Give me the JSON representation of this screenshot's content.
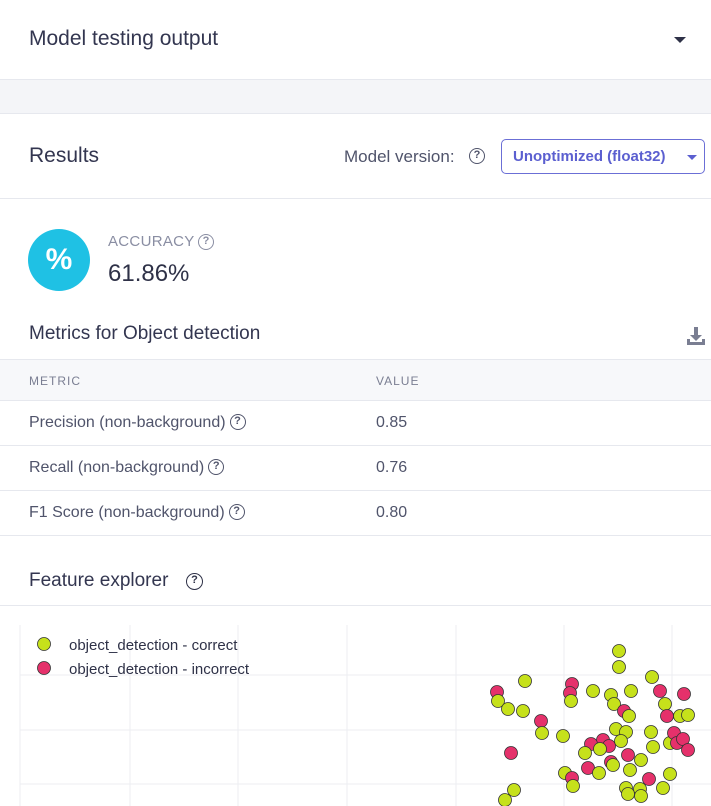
{
  "panel_top": {
    "title": "Model testing output"
  },
  "results": {
    "title": "Results",
    "model_version_label": "Model version:",
    "model_version_value": "Unoptimized (float32)"
  },
  "accuracy": {
    "icon": "percent-icon",
    "icon_glyph": "%",
    "label": "ACCURACY",
    "value": "61.86%"
  },
  "metrics": {
    "title": "Metrics for Object detection",
    "headers": [
      "METRIC",
      "VALUE"
    ],
    "rows": [
      {
        "name": "Precision (non-background)",
        "value": "0.85"
      },
      {
        "name": "Recall (non-background)",
        "value": "0.76"
      },
      {
        "name": "F1 Score (non-background)",
        "value": "0.80"
      }
    ]
  },
  "feature_explorer": {
    "title": "Feature explorer",
    "legend": [
      {
        "label": "object_detection - correct",
        "color": "#c6e11b"
      },
      {
        "label": "object_detection - incorrect",
        "color": "#e5316b"
      }
    ]
  },
  "colors": {
    "accent": "#5b5fd0",
    "accuracy_icon": "#1fc1e4",
    "correct": "#c6e11b",
    "incorrect": "#e5316b"
  }
}
